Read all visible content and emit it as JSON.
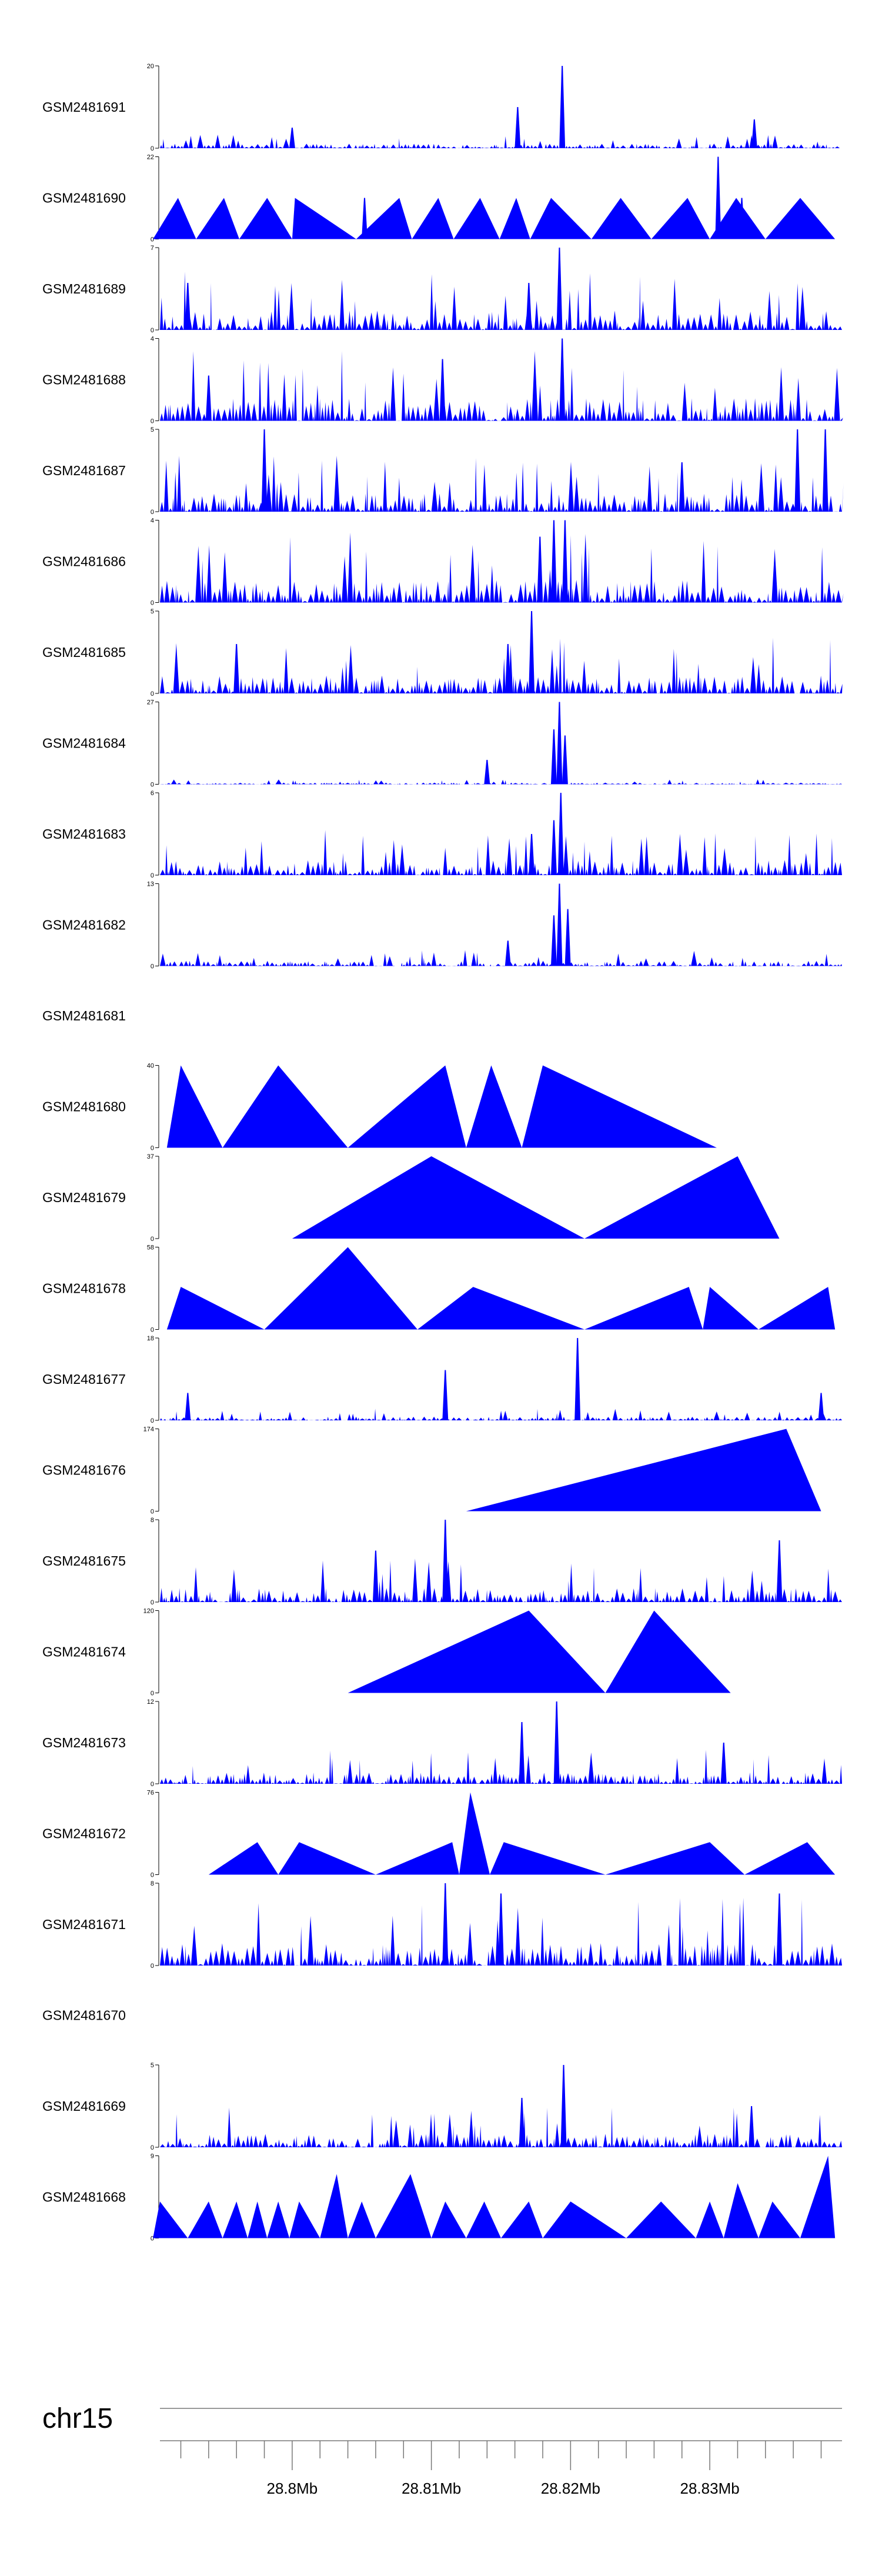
{
  "chart_data": {
    "type": "area",
    "title": "",
    "chromosome": "chr15",
    "x_axis": {
      "range_mb": [
        28.7905,
        28.8395
      ],
      "tick_labels": [
        "28.8Mb",
        "28.81Mb",
        "28.82Mb",
        "28.83Mb"
      ],
      "tick_values_mb": [
        28.8,
        28.81,
        28.82,
        28.83
      ],
      "minor_tick_step_mb": 0.002
    },
    "series_color": "#0000ff",
    "tracks": [
      {
        "name": "GSM2481691",
        "ymax": 20,
        "ymax_label": "20",
        "ymin_label": "0",
        "pattern": "dense",
        "base": 2,
        "spikes": [
          [
            28.8162,
            10
          ],
          [
            28.8194,
            20
          ],
          [
            28.8332,
            7
          ],
          [
            28.8,
            5
          ]
        ]
      },
      {
        "name": "GSM2481690",
        "ymax": 22,
        "ymax_label": "22",
        "ymin_label": "0",
        "pattern": "peaks",
        "peaks": [
          [
            28.79,
            28.7918,
            28.7931,
            11
          ],
          [
            28.7931,
            28.7951,
            28.7962,
            11
          ],
          [
            28.7962,
            28.7982,
            28.8,
            11
          ],
          [
            28.8,
            28.8002,
            28.8046,
            11
          ],
          [
            28.8046,
            28.8077,
            28.8086,
            11
          ],
          [
            28.8086,
            28.8105,
            28.8116,
            11
          ],
          [
            28.8116,
            28.8135,
            28.8149,
            11
          ],
          [
            28.8149,
            28.8161,
            28.8171,
            11
          ],
          [
            28.8171,
            28.8186,
            28.8215,
            11
          ],
          [
            28.8215,
            28.8236,
            28.8258,
            11
          ],
          [
            28.8258,
            28.8284,
            28.83,
            11
          ],
          [
            28.83,
            28.8319,
            28.834,
            11
          ],
          [
            28.834,
            28.8365,
            28.839,
            11
          ]
        ],
        "spikes": [
          [
            28.8306,
            22
          ],
          [
            28.8052,
            11
          ],
          [
            28.8323,
            11
          ]
        ]
      },
      {
        "name": "GSM2481689",
        "ymax": 7,
        "ymax_label": "7",
        "ymin_label": "0",
        "pattern": "dense",
        "base": 3,
        "spikes": [
          [
            28.8192,
            7
          ],
          [
            28.7925,
            4
          ],
          [
            28.817,
            4
          ]
        ]
      },
      {
        "name": "GSM2481688",
        "ymax": 4,
        "ymax_label": "4",
        "ymin_label": "0",
        "pattern": "dense",
        "base": 2,
        "spikes": [
          [
            28.8194,
            4
          ],
          [
            28.8108,
            3
          ],
          [
            28.794,
            2.2
          ]
        ]
      },
      {
        "name": "GSM2481687",
        "ymax": 5,
        "ymax_label": "5",
        "ymin_label": "0",
        "pattern": "dense",
        "base": 2,
        "spikes": [
          [
            28.798,
            5
          ],
          [
            28.8363,
            5
          ],
          [
            28.8383,
            5
          ],
          [
            28.828,
            3
          ]
        ]
      },
      {
        "name": "GSM2481686",
        "ymax": 4,
        "ymax_label": "4",
        "ymin_label": "0",
        "pattern": "dense",
        "base": 2,
        "spikes": [
          [
            28.8188,
            4
          ],
          [
            28.8196,
            4
          ],
          [
            28.8178,
            3.2
          ]
        ]
      },
      {
        "name": "GSM2481685",
        "ymax": 5,
        "ymax_label": "5",
        "ymin_label": "0",
        "pattern": "dense",
        "base": 2,
        "spikes": [
          [
            28.8172,
            5
          ],
          [
            28.8155,
            3
          ],
          [
            28.796,
            3
          ]
        ]
      },
      {
        "name": "GSM2481684",
        "ymax": 27,
        "ymax_label": "27",
        "ymin_label": "0",
        "pattern": "dense",
        "base": 1,
        "spikes": [
          [
            28.8192,
            27
          ],
          [
            28.8188,
            18
          ],
          [
            28.8196,
            16
          ],
          [
            28.814,
            8
          ]
        ]
      },
      {
        "name": "GSM2481683",
        "ymax": 6,
        "ymax_label": "6",
        "ymin_label": "0",
        "pattern": "dense",
        "base": 2,
        "spikes": [
          [
            28.8193,
            6
          ],
          [
            28.8188,
            4
          ],
          [
            28.8172,
            3
          ]
        ]
      },
      {
        "name": "GSM2481682",
        "ymax": 13,
        "ymax_label": "13",
        "ymin_label": "0",
        "pattern": "dense",
        "base": 1.5,
        "spikes": [
          [
            28.8192,
            13
          ],
          [
            28.8188,
            8
          ],
          [
            28.8198,
            9
          ],
          [
            28.8155,
            4
          ]
        ]
      },
      {
        "name": "GSM2481681",
        "ymax": null,
        "ymax_label": "",
        "ymin_label": "",
        "pattern": "empty"
      },
      {
        "name": "GSM2481680",
        "ymax": 40,
        "ymax_label": "40",
        "ymin_label": "0",
        "pattern": "peaks",
        "peaks": [
          [
            28.791,
            28.792,
            28.795,
            40
          ],
          [
            28.795,
            28.799,
            28.804,
            40
          ],
          [
            28.804,
            28.811,
            28.8125,
            40
          ],
          [
            28.8125,
            28.8143,
            28.8165,
            40
          ],
          [
            28.8165,
            28.818,
            28.8305,
            40
          ]
        ],
        "spikes": []
      },
      {
        "name": "GSM2481679",
        "ymax": 37,
        "ymax_label": "37",
        "ymin_label": "0",
        "pattern": "peaks",
        "peaks": [
          [
            28.8,
            28.81,
            28.821,
            37
          ],
          [
            28.821,
            28.832,
            28.835,
            37
          ]
        ],
        "spikes": []
      },
      {
        "name": "GSM2481678",
        "ymax": 58,
        "ymax_label": "58",
        "ymin_label": "0",
        "pattern": "peaks",
        "peaks": [
          [
            28.791,
            28.792,
            28.798,
            30
          ],
          [
            28.798,
            28.804,
            28.809,
            58
          ],
          [
            28.809,
            28.813,
            28.821,
            30
          ],
          [
            28.821,
            28.8285,
            28.8295,
            30
          ],
          [
            28.8295,
            28.83,
            28.8335,
            30
          ],
          [
            28.8335,
            28.8385,
            28.839,
            30
          ]
        ],
        "spikes": []
      },
      {
        "name": "GSM2481677",
        "ymax": 18,
        "ymax_label": "18",
        "ymin_label": "0",
        "pattern": "dense",
        "base": 1.5,
        "spikes": [
          [
            28.8205,
            18
          ],
          [
            28.811,
            11
          ],
          [
            28.7925,
            6
          ],
          [
            28.838,
            6
          ]
        ]
      },
      {
        "name": "GSM2481676",
        "ymax": 174,
        "ymax_label": "174",
        "ymin_label": "0",
        "pattern": "peaks",
        "peaks": [
          [
            28.8125,
            28.8355,
            28.838,
            174
          ]
        ],
        "spikes": []
      },
      {
        "name": "GSM2481675",
        "ymax": 8,
        "ymax_label": "8",
        "ymin_label": "0",
        "pattern": "dense",
        "base": 2.5,
        "spikes": [
          [
            28.811,
            8
          ],
          [
            28.835,
            6
          ],
          [
            28.806,
            5
          ]
        ]
      },
      {
        "name": "GSM2481674",
        "ymax": 120,
        "ymax_label": "120",
        "ymin_label": "0",
        "pattern": "peaks",
        "peaks": [
          [
            28.804,
            28.817,
            28.8225,
            120
          ],
          [
            28.8225,
            28.826,
            28.8315,
            120
          ]
        ],
        "spikes": []
      },
      {
        "name": "GSM2481673",
        "ymax": 12,
        "ymax_label": "12",
        "ymin_label": "0",
        "pattern": "dense",
        "base": 3,
        "spikes": [
          [
            28.819,
            12
          ],
          [
            28.8165,
            9
          ],
          [
            28.831,
            6
          ]
        ]
      },
      {
        "name": "GSM2481672",
        "ymax": 76,
        "ymax_label": "76",
        "ymin_label": "0",
        "pattern": "peaks",
        "peaks": [
          [
            28.794,
            28.7975,
            28.799,
            30
          ],
          [
            28.799,
            28.8005,
            28.806,
            30
          ],
          [
            28.806,
            28.8115,
            28.812,
            30
          ],
          [
            28.812,
            28.8128,
            28.8142,
            76
          ],
          [
            28.8142,
            28.8152,
            28.8225,
            30
          ],
          [
            28.8225,
            28.83,
            28.8325,
            30
          ],
          [
            28.8325,
            28.837,
            28.839,
            30
          ]
        ],
        "spikes": []
      },
      {
        "name": "GSM2481671",
        "ymax": 8,
        "ymax_label": "8",
        "ymin_label": "0",
        "pattern": "dense",
        "base": 4,
        "spikes": [
          [
            28.811,
            8
          ],
          [
            28.815,
            7
          ],
          [
            28.835,
            7
          ]
        ]
      },
      {
        "name": "GSM2481670",
        "ymax": null,
        "ymax_label": "",
        "ymin_label": "",
        "pattern": "empty"
      },
      {
        "name": "GSM2481669",
        "ymax": 5,
        "ymax_label": "5",
        "ymin_label": "0",
        "pattern": "dense",
        "base": 1.5,
        "spikes": [
          [
            28.8195,
            5
          ],
          [
            28.8165,
            3
          ],
          [
            28.833,
            2.5
          ]
        ]
      },
      {
        "name": "GSM2481668",
        "ymax": 9,
        "ymax_label": "9",
        "ymin_label": "0",
        "pattern": "peaks",
        "peaks": [
          [
            28.79,
            28.7905,
            28.7925,
            4
          ],
          [
            28.7925,
            28.794,
            28.795,
            4
          ],
          [
            28.795,
            28.796,
            28.7968,
            4
          ],
          [
            28.7968,
            28.7975,
            28.7982,
            4
          ],
          [
            28.7982,
            28.799,
            28.7998,
            4
          ],
          [
            28.7998,
            28.8005,
            28.802,
            4
          ],
          [
            28.802,
            28.8032,
            28.804,
            7
          ],
          [
            28.804,
            28.805,
            28.806,
            4
          ],
          [
            28.806,
            28.8085,
            28.81,
            7
          ],
          [
            28.81,
            28.811,
            28.8125,
            4
          ],
          [
            28.8125,
            28.8138,
            28.815,
            4
          ],
          [
            28.815,
            28.817,
            28.818,
            4
          ],
          [
            28.818,
            28.82,
            28.824,
            4
          ],
          [
            28.824,
            28.8265,
            28.829,
            4
          ],
          [
            28.829,
            28.83,
            28.831,
            4
          ],
          [
            28.831,
            28.832,
            28.8335,
            6
          ],
          [
            28.8335,
            28.8345,
            28.8365,
            4
          ],
          [
            28.8365,
            28.8385,
            28.839,
            9
          ]
        ],
        "spikes": []
      }
    ]
  }
}
